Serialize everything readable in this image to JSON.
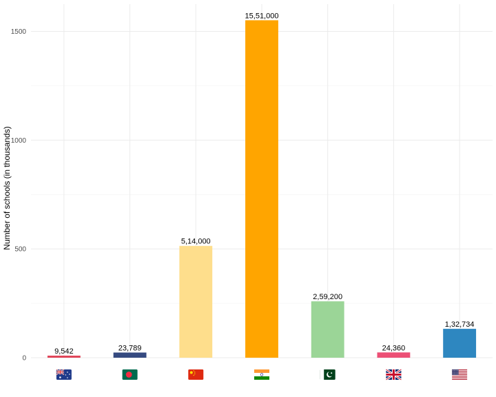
{
  "chart_data": {
    "type": "bar",
    "title": "",
    "xlabel": "",
    "ylabel": "Number of schools (in thousands)",
    "ylim": [
      0,
      1550
    ],
    "yticks": [
      0,
      500,
      1000,
      1500
    ],
    "grid": true,
    "legend": "none",
    "categories": [
      {
        "country": "Australia",
        "flag": "australia-flag-icon"
      },
      {
        "country": "Bangladesh",
        "flag": "bangladesh-flag-icon"
      },
      {
        "country": "China",
        "flag": "china-flag-icon"
      },
      {
        "country": "India",
        "flag": "india-flag-icon"
      },
      {
        "country": "Pakistan",
        "flag": "pakistan-flag-icon"
      },
      {
        "country": "United Kingdom",
        "flag": "uk-flag-icon"
      },
      {
        "country": "United States",
        "flag": "usa-flag-icon"
      }
    ],
    "values": [
      9.542,
      23.789,
      514,
      1551,
      259.2,
      24.36,
      132.734
    ],
    "data_labels": [
      "9,542",
      "23,789",
      "5,14,000",
      "15,51,000",
      "2,59,200",
      "24,360",
      "1,32,734"
    ],
    "colors": [
      "#e0465a",
      "#354a80",
      "#fede8c",
      "#ffa500",
      "#9bd597",
      "#ec5076",
      "#2e87c0"
    ]
  }
}
